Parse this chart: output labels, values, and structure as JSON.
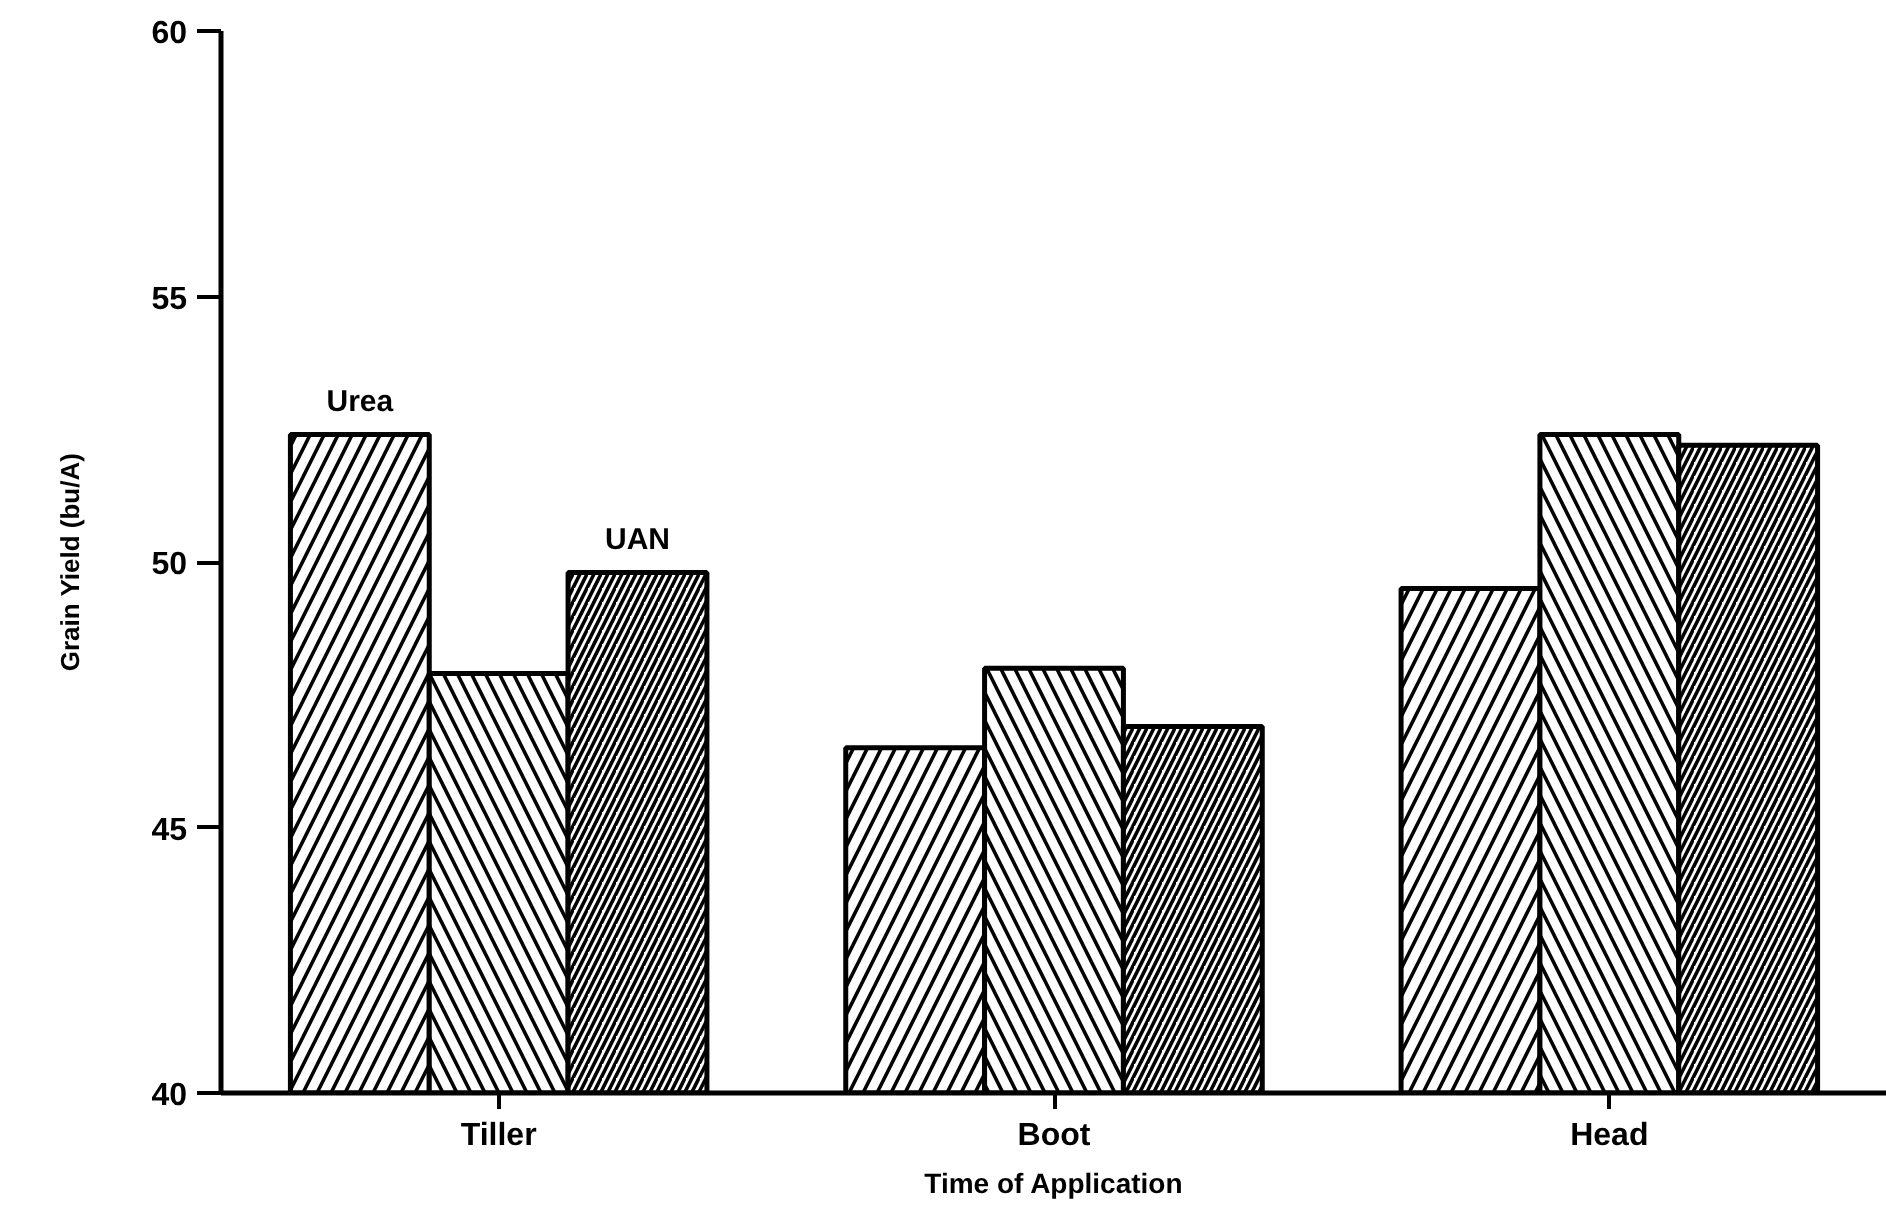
{
  "chart_data": {
    "type": "bar",
    "xlabel": "Time of Application",
    "ylabel": "Grain Yield (bu/A)",
    "categories": [
      "Tiller",
      "Boot",
      "Head"
    ],
    "series": [
      {
        "name": "Urea",
        "color": "#000000",
        "values": [
          52.4,
          46.5,
          49.5
        ]
      },
      {
        "color": "#000000",
        "values": [
          47.9,
          48.0,
          52.4
        ]
      },
      {
        "name": "UAN",
        "color": "#000000",
        "values": [
          49.8,
          46.9,
          52.2
        ]
      }
    ],
    "ylim": [
      40,
      60
    ],
    "yticks": [
      40,
      45,
      50,
      55,
      60
    ],
    "grid": false
  }
}
